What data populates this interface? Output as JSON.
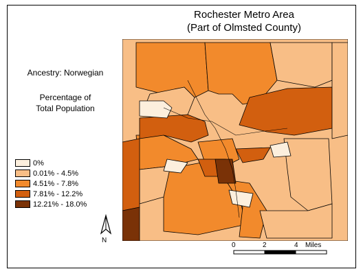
{
  "title": {
    "line1": "Rochester Metro Area",
    "line2": "(Part of Olmsted County)"
  },
  "subject": "Ancestry: Norwegian",
  "measure": {
    "line1": "Percentage of",
    "line2": "Total Population"
  },
  "legend": [
    {
      "label": "0%",
      "color": "#fcefdd"
    },
    {
      "label": "0.01% - 4.5%",
      "color": "#f8be86"
    },
    {
      "label": "4.51% - 7.8%",
      "color": "#f28a2c"
    },
    {
      "label": "7.81% - 12.2%",
      "color": "#d25f0f"
    },
    {
      "label": "12.21% - 18.0%",
      "color": "#7a3207"
    }
  ],
  "north_arrow": {
    "label": "N",
    "icon": "north-arrow-icon"
  },
  "scale_bar": {
    "ticks": [
      "0",
      "2",
      "4"
    ],
    "unit": "Miles"
  }
}
